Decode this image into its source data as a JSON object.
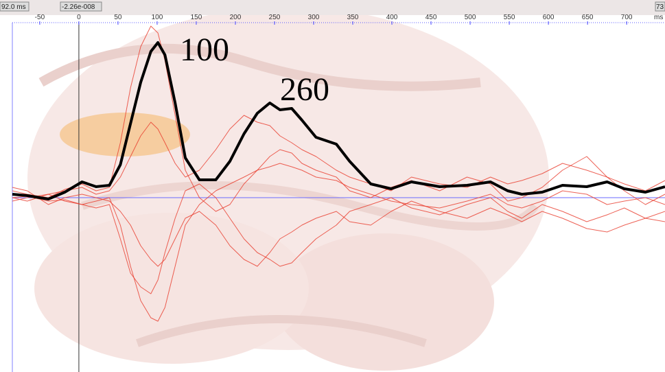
{
  "chart_data": {
    "type": "line",
    "status_left": "92.0 ms",
    "status_value": "-2.26e-008",
    "status_right": "73",
    "x_unit": "ms",
    "annotations": [
      "100",
      "260"
    ],
    "x": [
      -85,
      -66,
      -39,
      -18,
      4,
      22,
      39,
      53,
      66,
      79,
      92,
      101,
      110,
      123,
      136,
      154,
      175,
      193,
      211,
      228,
      244,
      257,
      272,
      285,
      303,
      329,
      346,
      373,
      399,
      425,
      461,
      496,
      526,
      548,
      566,
      592,
      618,
      649,
      675,
      697,
      724,
      749
    ],
    "xlim": [
      -85,
      749
    ],
    "xticks": [
      -50,
      0,
      50,
      100,
      150,
      200,
      250,
      300,
      350,
      400,
      450,
      500,
      550,
      600,
      650,
      700
    ],
    "ylim": [
      -254,
      266
    ],
    "series": [
      {
        "color": "#e8392a",
        "values": [
          0,
          2,
          -5,
          -3,
          -10,
          -5,
          0,
          -40,
          -100,
          -150,
          -175,
          -180,
          -160,
          -100,
          -40,
          -10,
          10,
          20,
          30,
          40,
          45,
          50,
          45,
          40,
          30,
          25,
          15,
          5,
          -5,
          -10,
          -15,
          -5,
          5,
          -10,
          -15,
          -5,
          10,
          5,
          -10,
          -5,
          0,
          -10
        ]
      },
      {
        "color": "#e8392a",
        "values": [
          10,
          5,
          0,
          12,
          20,
          10,
          15,
          80,
          160,
          220,
          250,
          240,
          200,
          120,
          40,
          0,
          -20,
          -10,
          20,
          40,
          60,
          70,
          65,
          50,
          40,
          30,
          10,
          0,
          15,
          25,
          10,
          30,
          20,
          -5,
          0,
          15,
          40,
          60,
          30,
          10,
          -10,
          5
        ]
      },
      {
        "color": "#e8392a",
        "values": [
          -5,
          0,
          5,
          -5,
          -10,
          -15,
          -10,
          -60,
          -110,
          -130,
          -140,
          -120,
          -80,
          -30,
          10,
          20,
          0,
          -30,
          -60,
          -80,
          -90,
          -100,
          -95,
          -80,
          -60,
          -40,
          -20,
          -10,
          0,
          -15,
          -25,
          -10,
          0,
          -20,
          -30,
          -10,
          -20,
          -35,
          -25,
          -15,
          -30,
          -20
        ]
      },
      {
        "color": "#e8392a",
        "values": [
          0,
          -5,
          5,
          10,
          15,
          5,
          10,
          30,
          60,
          90,
          110,
          100,
          80,
          50,
          30,
          40,
          70,
          100,
          120,
          110,
          105,
          90,
          80,
          70,
          60,
          40,
          30,
          20,
          10,
          30,
          20,
          15,
          30,
          20,
          25,
          35,
          50,
          40,
          30,
          20,
          10,
          25
        ]
      },
      {
        "color": "#e8392a",
        "values": [
          15,
          10,
          -10,
          0,
          5,
          0,
          -5,
          -20,
          -40,
          -70,
          -90,
          -100,
          -90,
          -60,
          -30,
          -20,
          -40,
          -70,
          -90,
          -100,
          -80,
          -60,
          -50,
          -40,
          -30,
          -20,
          -35,
          -40,
          -20,
          -5,
          -20,
          -30,
          -15,
          -25,
          -35,
          -20,
          -30,
          -45,
          -50,
          -40,
          -30,
          -35
        ]
      },
      {
        "color": "#000000",
        "values": [
          5,
          3,
          -2,
          8,
          23,
          16,
          18,
          48,
          108,
          168,
          213,
          226,
          208,
          138,
          58,
          26,
          26,
          53,
          93,
          123,
          138,
          128,
          130,
          113,
          88,
          78,
          53,
          20,
          13,
          23,
          16,
          18,
          23,
          10,
          5,
          8,
          18,
          16,
          23,
          13,
          8,
          16
        ]
      }
    ]
  }
}
